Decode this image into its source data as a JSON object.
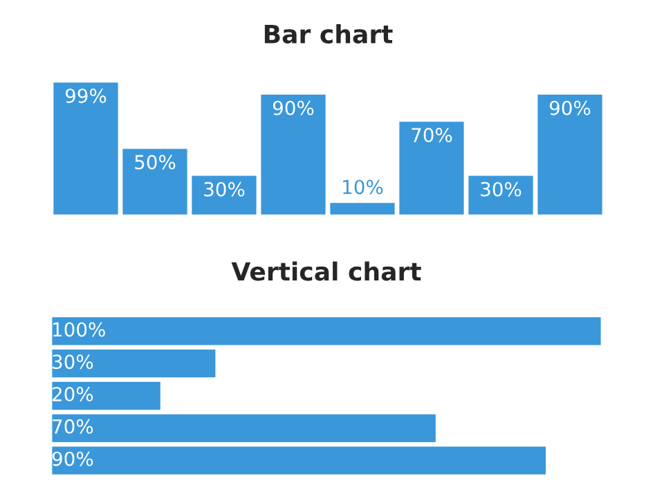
{
  "chart_data": [
    {
      "type": "bar",
      "title": "Bar chart",
      "categories": [
        null,
        null,
        null,
        null,
        null,
        null,
        null,
        null
      ],
      "values": [
        99,
        50,
        30,
        90,
        10,
        70,
        30,
        90
      ],
      "value_labels": [
        "99%",
        "50%",
        "30%",
        "90%",
        "10%",
        "70%",
        "30%",
        "90%"
      ],
      "color": "#3a97d9"
    },
    {
      "type": "bar",
      "orientation": "horizontal",
      "title": "Vertical chart",
      "categories": [
        null,
        null,
        null,
        null,
        null
      ],
      "values": [
        100,
        30,
        20,
        70,
        90
      ],
      "value_labels": [
        "100%",
        "30%",
        "20%",
        "70%",
        "90%"
      ],
      "color": "#3a97d9"
    }
  ]
}
